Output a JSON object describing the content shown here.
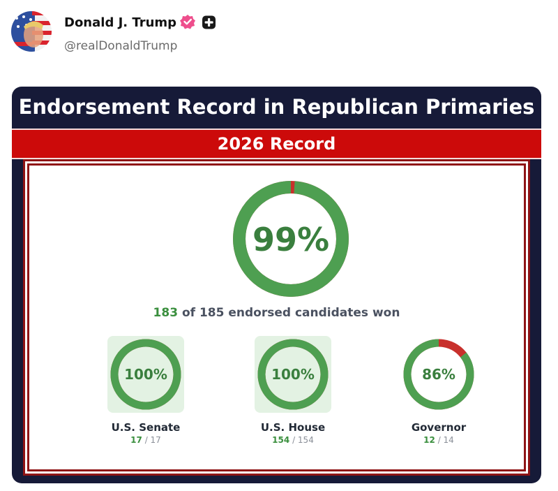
{
  "post": {
    "author_name": "Donald J. Trump",
    "handle": "@realDonaldTrump",
    "verified_badge_icon": "verified-badge-icon",
    "plus_badge_icon": "plus-badge-icon"
  },
  "card": {
    "title": "Endorsement Record in Republican Primaries",
    "subtitle": "2026 Record",
    "colors": {
      "navy": "#161a38",
      "red": "#cc0a0a",
      "green": "#4e9f51",
      "ring_red": "#c8302c",
      "light_green": "#e3f2e3"
    },
    "main": {
      "percent_label": "99%",
      "won": "183",
      "total_text": "of 185 endorsed candidates won",
      "fraction": 0.9892
    },
    "stats": [
      {
        "label": "U.S. Senate",
        "percent_label": "100%",
        "won": "17",
        "total": "/ 17",
        "fraction": 1.0,
        "highlight": true
      },
      {
        "label": "U.S. House",
        "percent_label": "100%",
        "won": "154",
        "total": "/ 154",
        "fraction": 1.0,
        "highlight": true
      },
      {
        "label": "Governor",
        "percent_label": "86%",
        "won": "12",
        "total": "/ 14",
        "fraction": 0.857,
        "highlight": false
      }
    ]
  }
}
